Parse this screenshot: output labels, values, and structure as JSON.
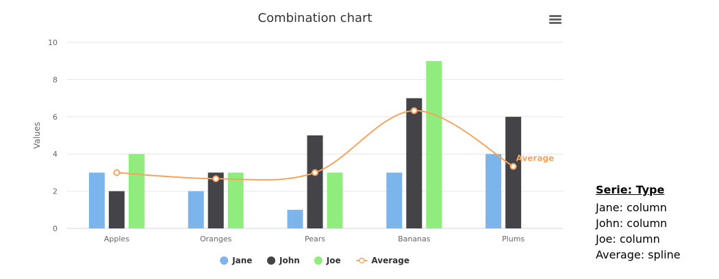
{
  "chart_data": {
    "type": "bar",
    "title": "Combination chart",
    "ylabel": "Values",
    "xlabel": "",
    "categories": [
      "Apples",
      "Oranges",
      "Pears",
      "Bananas",
      "Plums"
    ],
    "ylim": [
      0,
      10
    ],
    "yticks": [
      0,
      2,
      4,
      6,
      8,
      10
    ],
    "grid": true,
    "legend_position": "bottom-center",
    "series": [
      {
        "name": "Jane",
        "type": "column",
        "color": "#7cb5ec",
        "values": [
          3,
          2,
          1,
          3,
          4
        ]
      },
      {
        "name": "John",
        "type": "column",
        "color": "#434348",
        "values": [
          2,
          3,
          5,
          7,
          6
        ]
      },
      {
        "name": "Joe",
        "type": "column",
        "color": "#90ed7d",
        "values": [
          4,
          3,
          3,
          9,
          0
        ]
      },
      {
        "name": "Average",
        "type": "spline",
        "color": "#f7a35c",
        "values": [
          3,
          2.67,
          3,
          6.33,
          3.33
        ],
        "end_label": "Average"
      }
    ]
  },
  "menu_icon": "hamburger-menu-icon",
  "side_panel": {
    "title": "Serie: Type",
    "rows": [
      "Jane: column",
      "John: column",
      "Joe: column",
      "Average: spline"
    ]
  }
}
